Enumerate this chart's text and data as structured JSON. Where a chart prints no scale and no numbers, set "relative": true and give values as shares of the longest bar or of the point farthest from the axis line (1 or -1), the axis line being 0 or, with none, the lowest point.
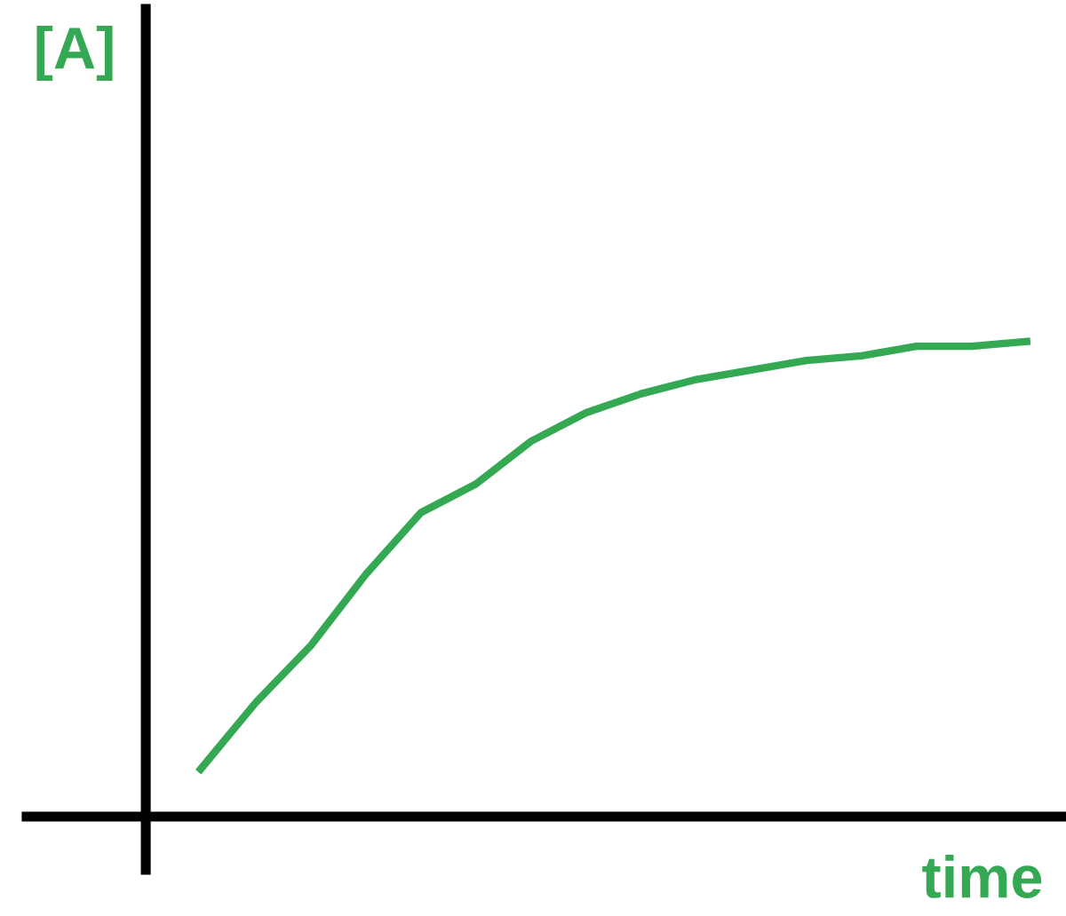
{
  "chart_data": {
    "type": "line",
    "relative": true,
    "xlabel": "time",
    "ylabel": "[A]",
    "categories": [
      null,
      null,
      null,
      null,
      null,
      null,
      null,
      null,
      null,
      null,
      null,
      null,
      null,
      null,
      null,
      null
    ],
    "series": [
      {
        "color": "#34a853",
        "values": [
          0.1,
          0.24,
          0.36,
          0.51,
          0.64,
          0.7,
          0.79,
          0.85,
          0.89,
          0.92,
          0.94,
          0.96,
          0.97,
          0.99,
          0.99,
          1
        ]
      }
    ],
    "marker": "none",
    "line_style": "solid",
    "legend": false
  }
}
